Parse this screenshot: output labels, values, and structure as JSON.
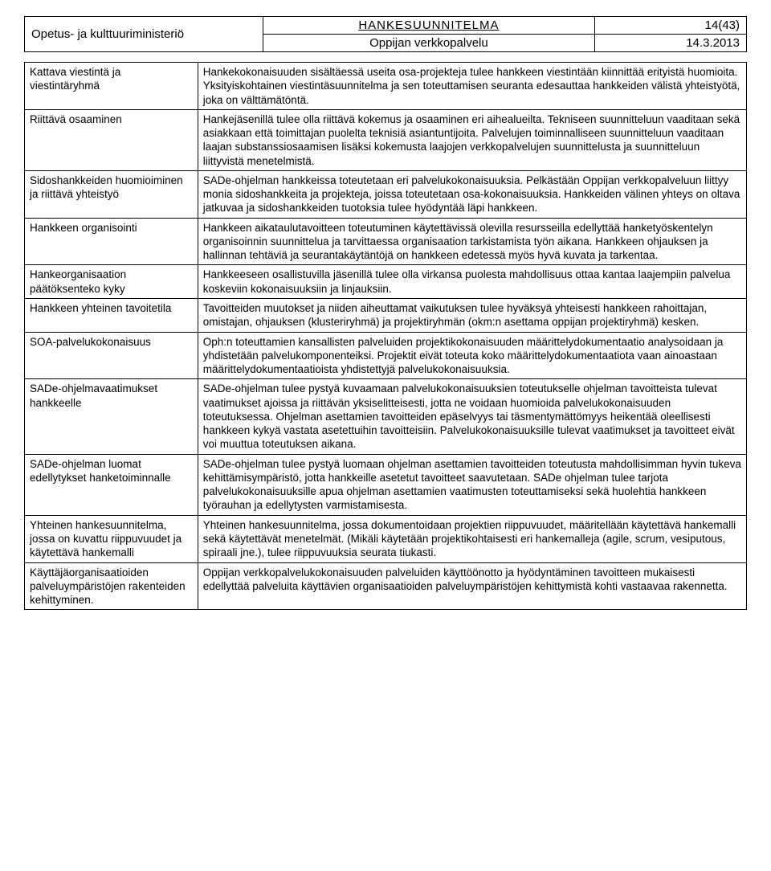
{
  "header": {
    "ministry": "Opetus- ja kulttuuriministeriö",
    "doc_title": "HANKESUUNNITELMA",
    "page_info": "14(43)",
    "service": "Oppijan verkkopalvelu",
    "date": "14.3.2013"
  },
  "rows": [
    {
      "label": "Kattava viestintä ja viestintäryhmä",
      "value": "Hankekokonaisuuden sisältäessä useita osa-projekteja tulee hankkeen viestintään kiinnittää erityistä huomioita. Yksityiskohtainen viestintäsuunnitelma ja sen toteuttamisen seuranta edesauttaa hankkeiden välistä yhteistyötä, joka on välttämätöntä."
    },
    {
      "label": "Riittävä osaaminen",
      "value": "Hankejäsenillä tulee olla riittävä kokemus ja osaaminen eri aihealueilta. Tekniseen suunnitteluun vaaditaan sekä asiakkaan että toimittajan puolelta teknisiä asiantuntijoita. Palvelujen toiminnalliseen suunnitteluun vaaditaan laajan substanssiosaamisen lisäksi kokemusta laajojen verkkopalvelujen suunnittelusta ja suunnitteluun liittyvistä menetelmistä."
    },
    {
      "label": "Sidoshankkeiden huomioiminen ja riittävä yhteistyö",
      "value": "SADe-ohjelman hankkeissa toteutetaan eri palvelukokonaisuuksia. Pelkästään Oppijan verkkopalveluun liittyy monia sidoshankkeita ja projekteja, joissa toteutetaan osa-kokonaisuuksia. Hankkeiden välinen yhteys on oltava jatkuvaa ja sidoshankkeiden tuotoksia tulee hyödyntää läpi hankkeen."
    },
    {
      "label": "Hankkeen organisointi",
      "value": "Hankkeen aikataulutavoitteen toteutuminen käytettävissä olevilla resursseilla edellyttää hanketyöskentelyn organisoinnin suunnittelua ja tarvittaessa organisaation tarkistamista työn aikana. Hankkeen ohjauksen ja hallinnan tehtäviä ja seurantakäytäntöjä on hankkeen edetessä myös hyvä kuvata ja tarkentaa."
    },
    {
      "label": "Hankeorganisaation päätöksenteko kyky",
      "value": "Hankkeeseen osallistuvilla jäsenillä tulee olla virkansa puolesta mahdollisuus ottaa kantaa laajempiin palvelua koskeviin kokonaisuuksiin ja linjauksiin."
    },
    {
      "label": "Hankkeen yhteinen tavoitetila",
      "value": "Tavoitteiden muutokset ja niiden aiheuttamat vaikutuksen tulee hyväksyä yhteisesti hankkeen rahoittajan, omistajan, ohjauksen (klusteriryhmä) ja projektiryhmän (okm:n asettama oppijan projektiryhmä) kesken."
    },
    {
      "label": "SOA-palvelukokonaisuus",
      "value": "Oph:n toteuttamien kansallisten palveluiden projektikokonaisuuden määrittelydokumentaatio analysoidaan ja yhdistetään palvelukomponenteiksi. Projektit eivät toteuta koko määrittelydokumentaatiota vaan ainoastaan määrittelydokumentaatioista yhdistettyjä palvelukokonaisuuksia."
    },
    {
      "label": "SADe-ohjelmavaatimukset hankkeelle",
      "value": "SADe-ohjelman tulee pystyä kuvaamaan palvelukokonaisuuksien toteutukselle ohjelman tavoitteista tulevat vaatimukset ajoissa ja riittävän yksiselitteisesti, jotta ne voidaan huomioida palvelukokonaisuuden toteutuksessa. Ohjelman asettamien tavoitteiden epäselvyys tai täsmentymättömyys heikentää oleellisesti hankkeen kykyä vastata asetettuihin tavoitteisiin. Palvelukokonaisuuksille tulevat vaatimukset ja tavoitteet eivät voi muuttua toteutuksen aikana."
    },
    {
      "label": "SADe-ohjelman luomat edellytykset hanketoiminnalle",
      "value": "SADe-ohjelman tulee pystyä luomaan ohjelman asettamien tavoitteiden toteutusta mahdollisimman hyvin tukeva kehittämisympäristö, jotta hankkeille asetetut tavoitteet saavutetaan. SADe ohjelman tulee tarjota palvelukokonaisuuksille apua ohjelman asettamien vaatimusten toteuttamiseksi sekä huolehtia hankkeen työrauhan ja edellytysten varmistamisesta."
    },
    {
      "label": "Yhteinen hankesuunnitelma, jossa on kuvattu riippuvuudet ja käytettävä hankemalli",
      "value": "Yhteinen hankesuunnitelma, jossa dokumentoidaan projektien riippuvuudet, määritellään käytettävä hankemalli sekä käytettävät menetelmät. (Mikäli käytetään projektikohtaisesti eri hankemalleja (agile, scrum, vesiputous, spiraali jne.), tulee riippuvuuksia seurata tiukasti."
    },
    {
      "label": "Käyttäjäorganisaatioiden palveluympäristöjen rakenteiden kehittyminen.",
      "value": "Oppijan verkkopalvelukokonaisuuden palveluiden käyttöönotto ja hyödyntäminen tavoitteen mukaisesti edellyttää palveluita käyttävien organisaatioiden palveluympäristöjen kehittymistä kohti vastaavaa rakennetta."
    }
  ]
}
